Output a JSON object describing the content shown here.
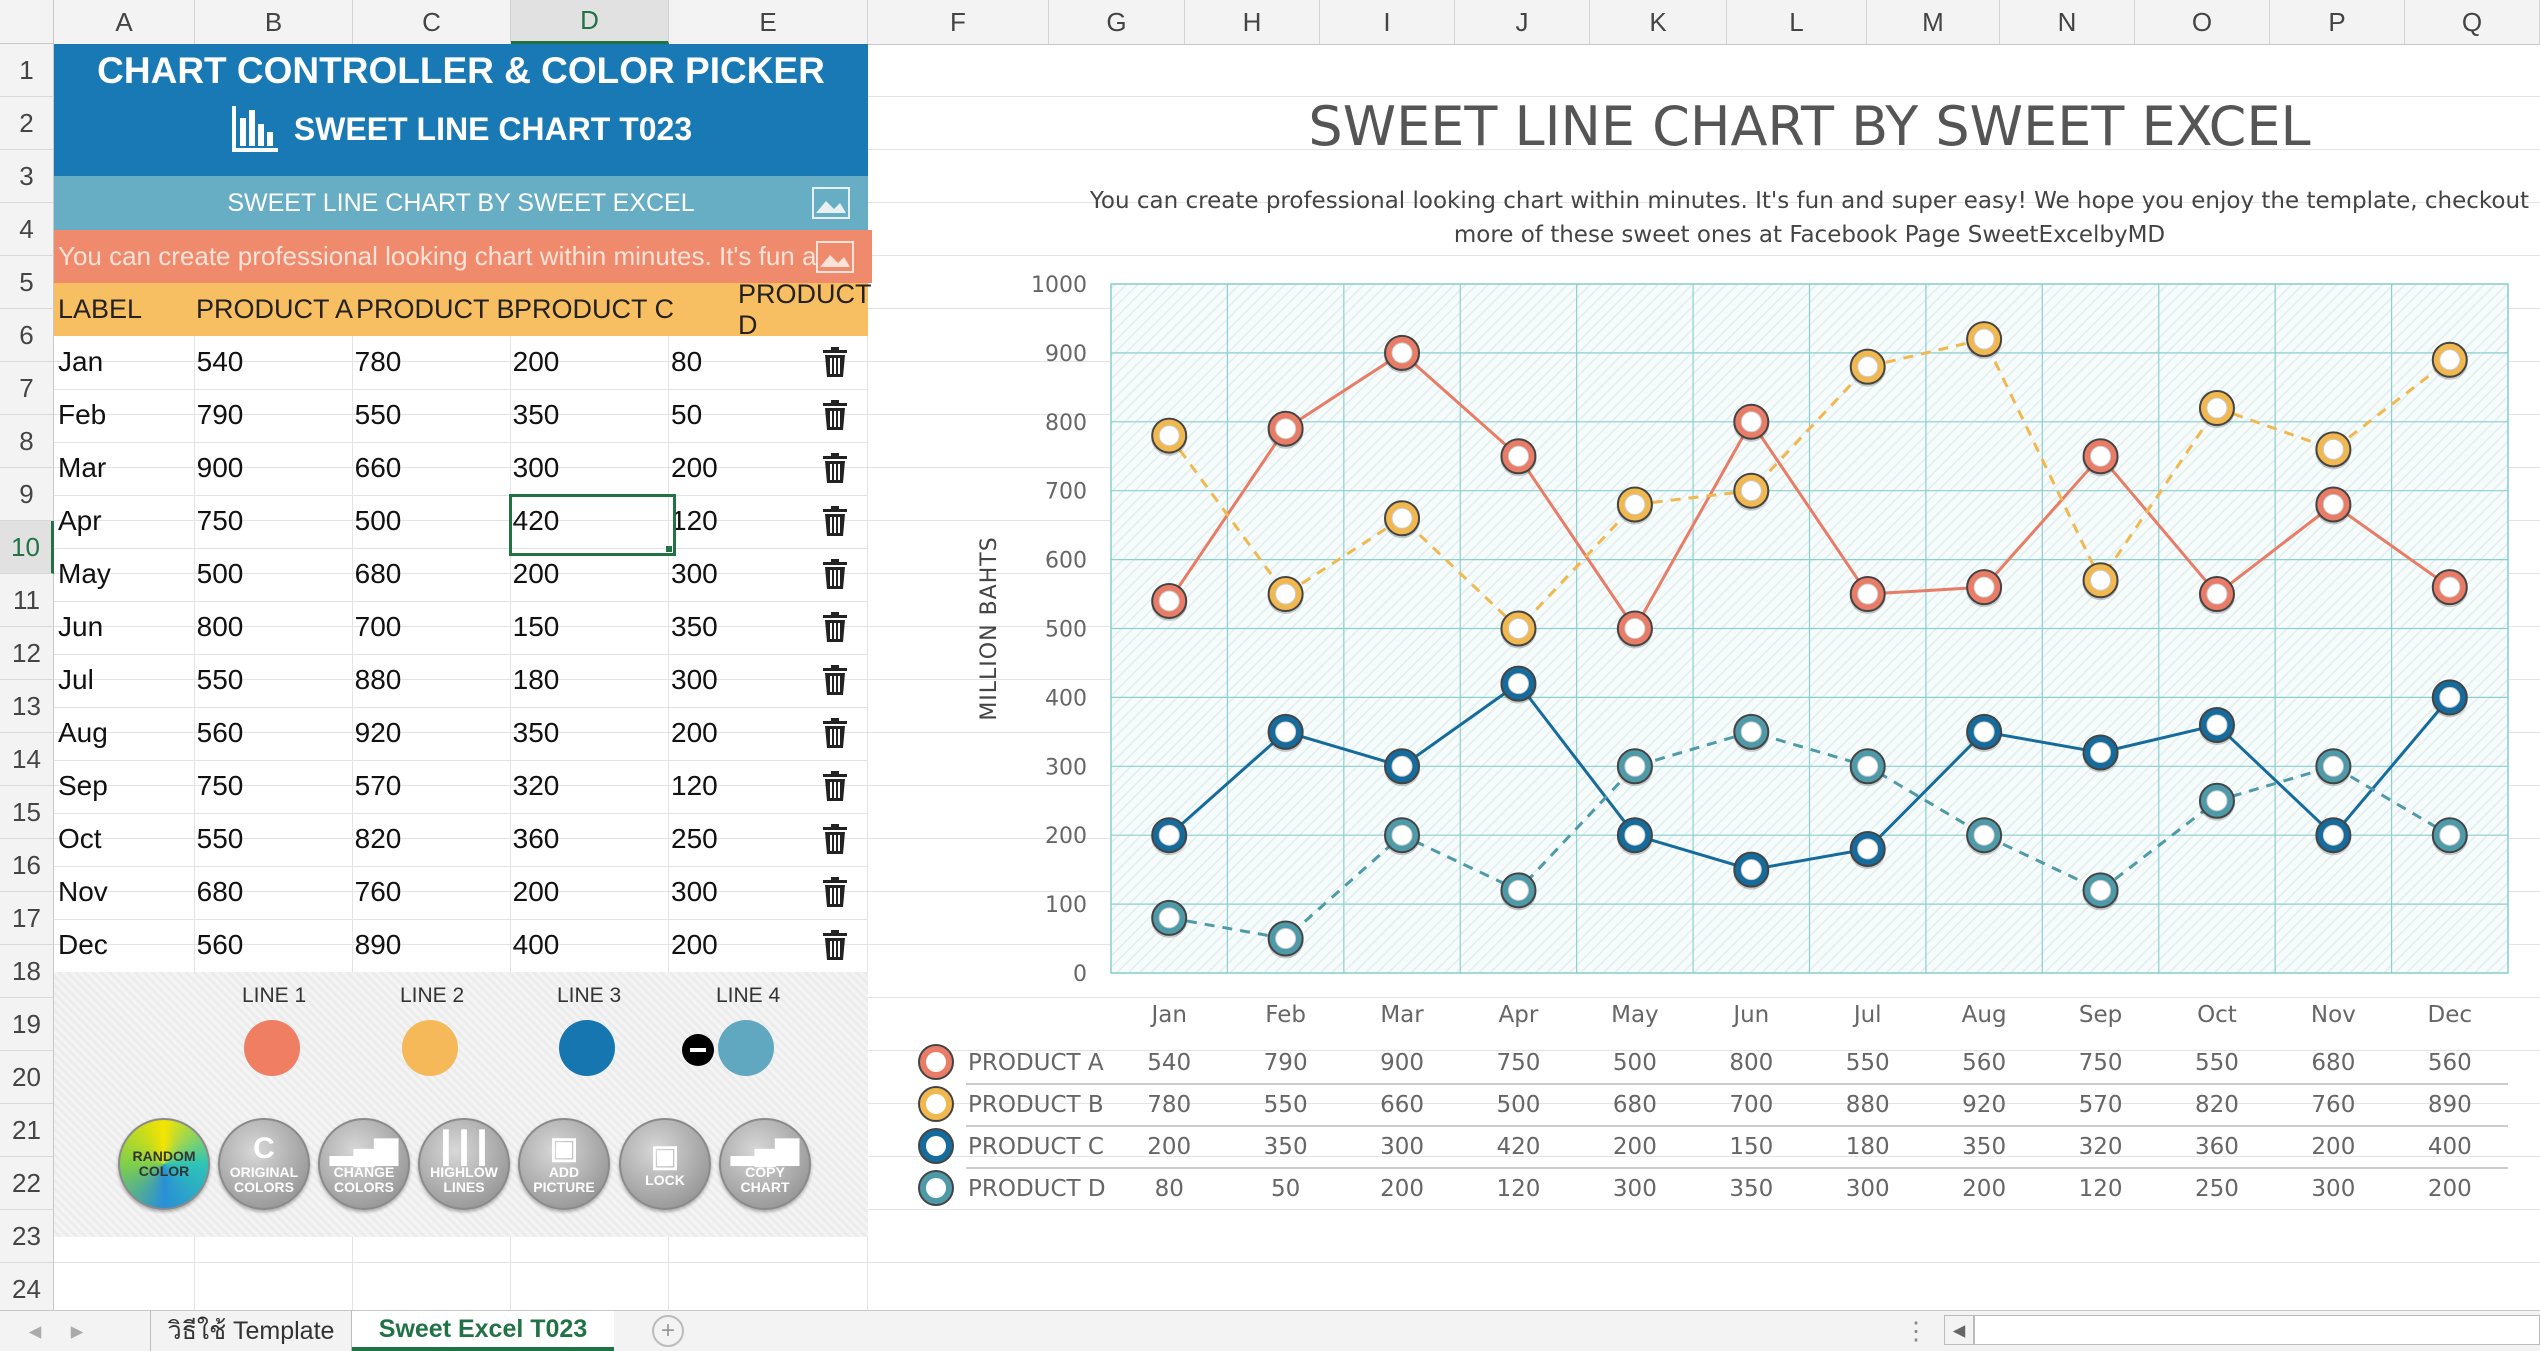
{
  "sheet": {
    "columns": [
      "A",
      "B",
      "C",
      "D",
      "E",
      "F",
      "G",
      "H",
      "I",
      "J",
      "K",
      "L",
      "M",
      "N",
      "O",
      "P",
      "Q"
    ],
    "rows": [
      "1",
      "2",
      "3",
      "4",
      "5",
      "6",
      "7",
      "8",
      "9",
      "10",
      "11",
      "12",
      "13",
      "14",
      "15",
      "16",
      "17",
      "18",
      "19",
      "20",
      "21",
      "22",
      "23",
      "24"
    ],
    "selected_cell": "D10"
  },
  "controller": {
    "title": "CHART CONTROLLER & COLOR PICKER",
    "subtitle": "SWEET LINE CHART T023",
    "chart_title_cell": "SWEET LINE CHART BY SWEET EXCEL",
    "description_cell": "You can create professional looking chart within minutes. It's fun and",
    "table": {
      "headers": [
        "LABEL",
        "PRODUCT A",
        "PRODUCT B",
        "PRODUCT C",
        "PRODUCT D"
      ],
      "rows": [
        [
          "Jan",
          "540",
          "780",
          "200",
          "80"
        ],
        [
          "Feb",
          "790",
          "550",
          "350",
          "50"
        ],
        [
          "Mar",
          "900",
          "660",
          "300",
          "200"
        ],
        [
          "Apr",
          "750",
          "500",
          "420",
          "120"
        ],
        [
          "May",
          "500",
          "680",
          "200",
          "300"
        ],
        [
          "Jun",
          "800",
          "700",
          "150",
          "350"
        ],
        [
          "Jul",
          "550",
          "880",
          "180",
          "300"
        ],
        [
          "Aug",
          "560",
          "920",
          "350",
          "200"
        ],
        [
          "Sep",
          "750",
          "570",
          "320",
          "120"
        ],
        [
          "Oct",
          "550",
          "820",
          "360",
          "250"
        ],
        [
          "Nov",
          "680",
          "760",
          "200",
          "300"
        ],
        [
          "Dec",
          "560",
          "890",
          "400",
          "200"
        ]
      ]
    },
    "line_labels": [
      "LINE 1",
      "LINE 2",
      "LINE 3",
      "LINE 4"
    ],
    "line_colors": [
      "#f07e63",
      "#f5b959",
      "#1676b0",
      "#5fa8c0"
    ],
    "buttons": [
      {
        "label": "RANDOM\nCOLOR",
        "icon": "random-color-icon"
      },
      {
        "label": "ORIGINAL\nCOLORS",
        "icon": "original-colors-icon"
      },
      {
        "label": "CHANGE\nCOLORS",
        "icon": "change-colors-icon"
      },
      {
        "label": "HIGHLOW\nLINES",
        "icon": "highlow-lines-icon"
      },
      {
        "label": "ADD\nPICTURE",
        "icon": "add-picture-icon"
      },
      {
        "label": "LOCK",
        "icon": "lock-icon"
      },
      {
        "label": "COPY\nCHART",
        "icon": "copy-chart-icon"
      }
    ]
  },
  "chart_data": {
    "type": "line",
    "title": "SWEET LINE CHART BY SWEET EXCEL",
    "subtitle": "You can create professional looking chart within minutes. It's fun and super easy! We hope you enjoy the template, checkout more of these sweet ones at Facebook Page SweetExcelbyMD",
    "ylabel": "MILLION BAHTS",
    "xlabel": "",
    "ylim": [
      0,
      1000
    ],
    "yticks": [
      "0",
      "100",
      "200",
      "300",
      "400",
      "500",
      "600",
      "700",
      "800",
      "900",
      "1000"
    ],
    "categories": [
      "Jan",
      "Feb",
      "Mar",
      "Apr",
      "May",
      "Jun",
      "Jul",
      "Aug",
      "Sep",
      "Oct",
      "Nov",
      "Dec"
    ],
    "series": [
      {
        "name": "PRODUCT A",
        "values": [
          540,
          790,
          900,
          750,
          500,
          800,
          550,
          560,
          750,
          550,
          680,
          560
        ],
        "color": "#e87c66",
        "dash": false
      },
      {
        "name": "PRODUCT B",
        "values": [
          780,
          550,
          660,
          500,
          680,
          700,
          880,
          920,
          570,
          820,
          760,
          890
        ],
        "color": "#f1b84f",
        "dash": true
      },
      {
        "name": "PRODUCT C",
        "values": [
          200,
          350,
          300,
          420,
          200,
          150,
          180,
          350,
          320,
          360,
          200,
          400
        ],
        "color": "#156b9c",
        "dash": false
      },
      {
        "name": "PRODUCT D",
        "values": [
          80,
          50,
          200,
          120,
          300,
          350,
          300,
          200,
          120,
          250,
          300,
          200
        ],
        "color": "#4e9aa8",
        "dash": true
      }
    ],
    "grid": true,
    "legend": "data-table"
  },
  "tabs": {
    "items": [
      "วิธีใช้ Template",
      "Sweet Excel T023"
    ],
    "active": "Sweet Excel T023"
  }
}
